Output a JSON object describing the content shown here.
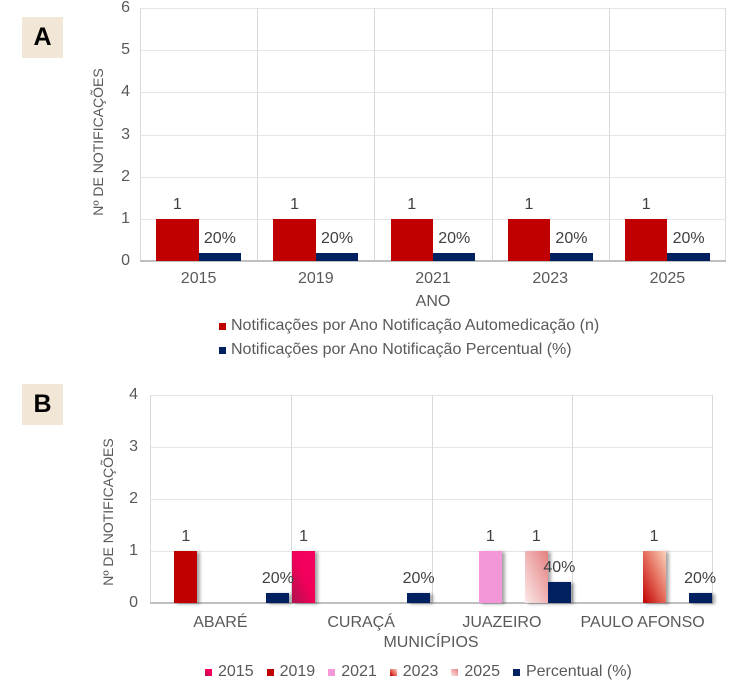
{
  "panel_labels": {
    "a": "A",
    "b": "B"
  },
  "chart_data": [
    {
      "id": "A",
      "type": "bar",
      "title": "",
      "xlabel": "ANO",
      "ylabel": "Nº DE NOTIFICAÇÕES",
      "ylim": [
        0,
        6
      ],
      "yticks": [
        0,
        1,
        2,
        3,
        4,
        5,
        6
      ],
      "grid": true,
      "legend": "bottom",
      "categories": [
        "2015",
        "2019",
        "2021",
        "2023",
        "2025"
      ],
      "series": [
        {
          "name": "Notificações por Ano Notificação Automedicação (n)",
          "color": "#C00000",
          "values": [
            1,
            1,
            1,
            1,
            1
          ],
          "labels": [
            "1",
            "1",
            "1",
            "1",
            "1"
          ]
        },
        {
          "name": "Notificações por Ano Notificação Percentual (%)",
          "color": "#002060",
          "values": [
            0.2,
            0.2,
            0.2,
            0.2,
            0.2
          ],
          "labels": [
            "20%",
            "20%",
            "20%",
            "20%",
            "20%"
          ]
        }
      ]
    },
    {
      "id": "B",
      "type": "bar",
      "title": "",
      "xlabel": "MUNICÍPIOS",
      "ylabel": "Nº DE NOTIFICAÇÕES",
      "ylim": [
        0,
        4
      ],
      "yticks": [
        0,
        1,
        2,
        3,
        4
      ],
      "grid": true,
      "legend": "bottom",
      "categories": [
        "ABARÉ",
        "CURAÇÁ",
        "JUAZEIRO",
        "PAULO AFONSO"
      ],
      "series": [
        {
          "name": "2015",
          "color": "#E6005C",
          "gradient": [
            "#F7005F",
            "#F0005A",
            "#B0124E"
          ],
          "values": [
            null,
            1,
            null,
            null
          ],
          "labels": [
            null,
            "1",
            null,
            null
          ]
        },
        {
          "name": "2019",
          "color": "#C00000",
          "values": [
            1,
            null,
            null,
            null
          ],
          "labels": [
            "1",
            null,
            null,
            null
          ]
        },
        {
          "name": "2021",
          "color": "#F497D9",
          "values": [
            null,
            null,
            1,
            null
          ],
          "labels": [
            null,
            null,
            "1",
            null
          ]
        },
        {
          "name": "2023",
          "color": "#D83A30",
          "gradient": [
            "#FAD2BC",
            "#E46A5A",
            "#C00000"
          ],
          "values": [
            null,
            null,
            null,
            1
          ],
          "labels": [
            null,
            null,
            null,
            "1"
          ]
        },
        {
          "name": "2025",
          "color": "#F2B9B9",
          "gradient": [
            "#E57F7F",
            "#FBE9E9"
          ],
          "values": [
            null,
            null,
            1,
            null
          ],
          "labels": [
            null,
            null,
            "1",
            null
          ]
        },
        {
          "name": "Percentual (%)",
          "color": "#002060",
          "values": [
            0.2,
            0.2,
            0.4,
            0.2
          ],
          "labels": [
            "20%",
            "20%",
            "40%",
            "20%"
          ]
        }
      ]
    }
  ]
}
